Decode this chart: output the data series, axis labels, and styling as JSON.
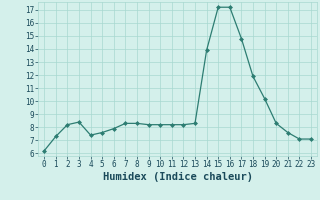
{
  "x": [
    0,
    1,
    2,
    3,
    4,
    5,
    6,
    7,
    8,
    9,
    10,
    11,
    12,
    13,
    14,
    15,
    16,
    17,
    18,
    19,
    20,
    21,
    22,
    23
  ],
  "y": [
    6.2,
    7.3,
    8.2,
    8.4,
    7.4,
    7.6,
    7.9,
    8.3,
    8.3,
    8.2,
    8.2,
    8.2,
    8.2,
    8.3,
    13.9,
    17.2,
    17.2,
    14.8,
    11.9,
    10.2,
    8.3,
    7.6,
    7.1,
    7.1
  ],
  "line_color": "#2d7d72",
  "marker": "D",
  "marker_size": 2.0,
  "bg_color": "#d4f0eb",
  "grid_color": "#a8d8d0",
  "xlabel": "Humidex (Indice chaleur)",
  "ylim": [
    5.8,
    17.6
  ],
  "xlim": [
    -0.5,
    23.5
  ],
  "yticks": [
    6,
    7,
    8,
    9,
    10,
    11,
    12,
    13,
    14,
    15,
    16,
    17
  ],
  "xticks": [
    0,
    1,
    2,
    3,
    4,
    5,
    6,
    7,
    8,
    9,
    10,
    11,
    12,
    13,
    14,
    15,
    16,
    17,
    18,
    19,
    20,
    21,
    22,
    23
  ],
  "tick_fontsize": 5.5,
  "xlabel_fontsize": 7.5,
  "label_color": "#1a4a5a",
  "linewidth": 0.9
}
